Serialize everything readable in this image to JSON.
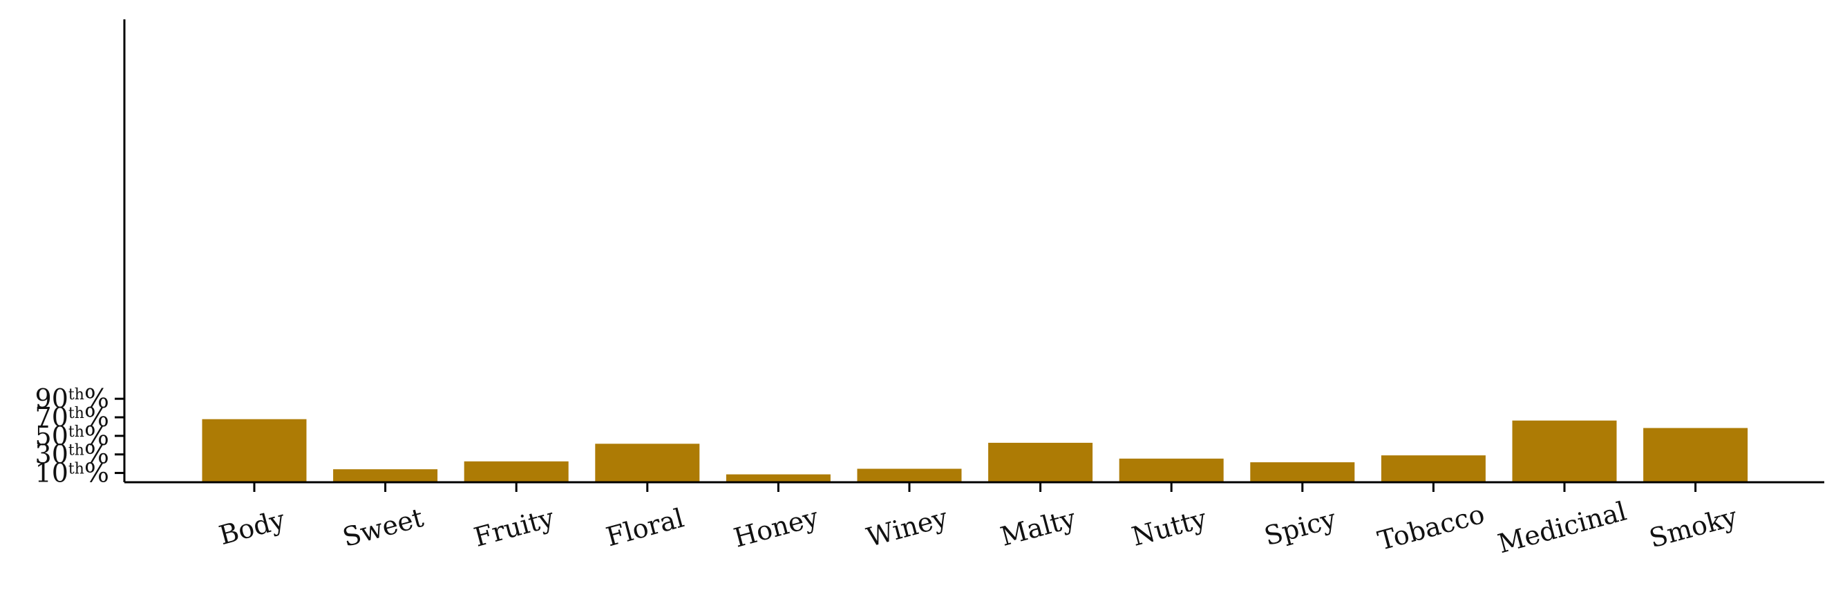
{
  "chart_data": {
    "type": "bar",
    "categories": [
      "Body",
      "Sweet",
      "Fruity",
      "Floral",
      "Honey",
      "Winey",
      "Malty",
      "Nutty",
      "Spicy",
      "Tobacco",
      "Medicinal",
      "Smoky"
    ],
    "values": [
      68,
      14,
      22.5,
      41.5,
      8.5,
      14.5,
      42.5,
      25.5,
      21.5,
      29,
      66.5,
      58.5
    ],
    "bar_color": "#ad7b05",
    "ylim": [
      0,
      100
    ],
    "yticks": [
      {
        "value": 10,
        "number": "10",
        "sup": "th",
        "suffix": "%"
      },
      {
        "value": 30,
        "number": "30",
        "sup": "th",
        "suffix": "%"
      },
      {
        "value": 50,
        "number": "50",
        "sup": "th",
        "suffix": "%"
      },
      {
        "value": 70,
        "number": "70",
        "sup": "th",
        "suffix": "%"
      },
      {
        "value": 90,
        "number": "90",
        "sup": "th",
        "suffix": "%"
      }
    ],
    "grid": false,
    "title": "",
    "xlabel": "",
    "ylabel": ""
  }
}
